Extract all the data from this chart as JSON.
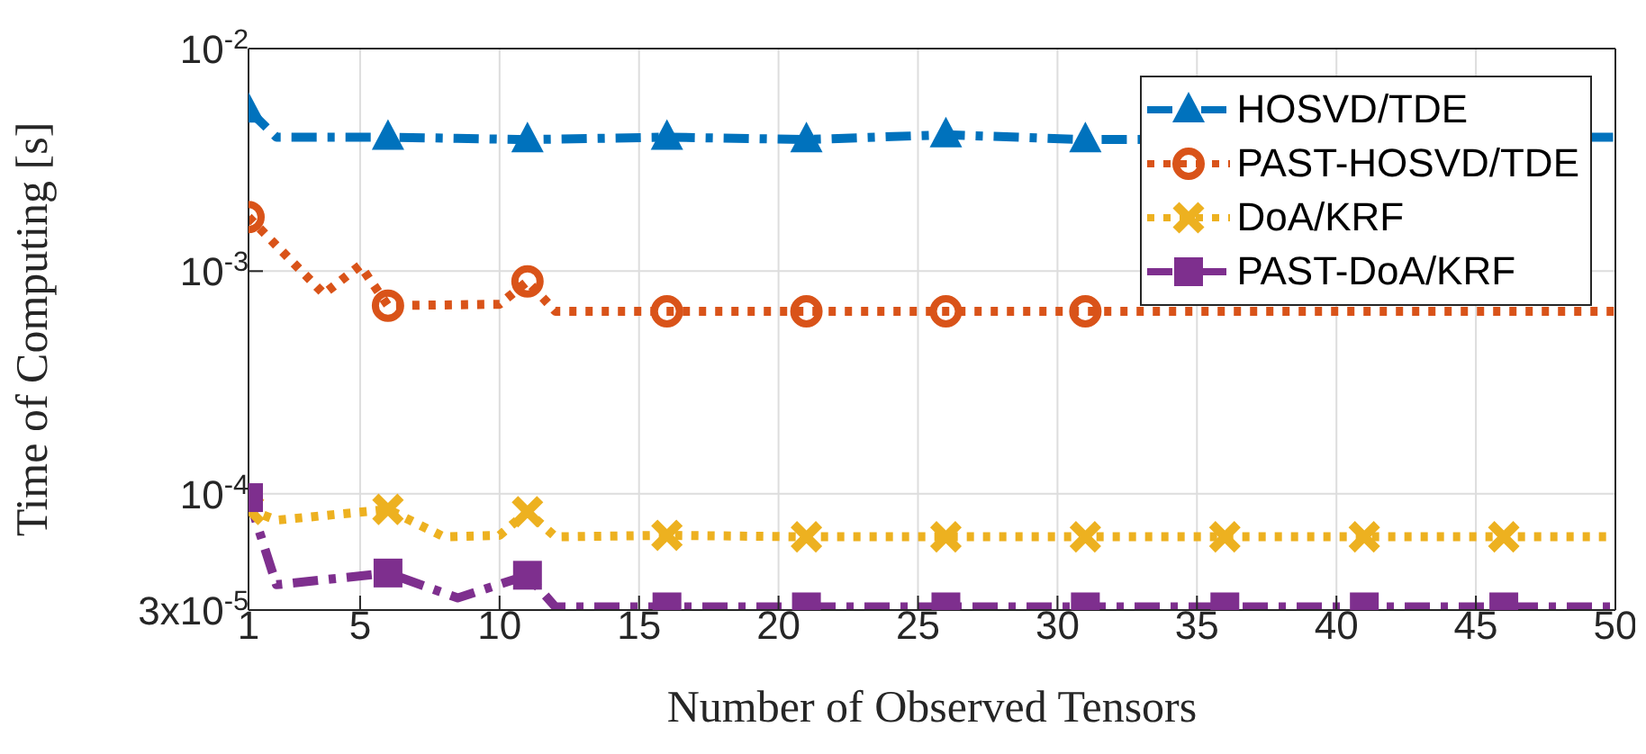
{
  "chart_data": {
    "type": "line",
    "xlabel": "Number of Observed Tensors",
    "ylabel": "Time of Computing [s]",
    "log": "y",
    "xlim": [
      1,
      50
    ],
    "xticks": [
      1,
      5,
      10,
      15,
      20,
      25,
      30,
      35,
      40,
      45,
      50
    ],
    "ylim": [
      3e-05,
      0.01
    ],
    "yticks": [
      {
        "value": 3e-05,
        "label": "3x10$^{-5}$"
      },
      {
        "value": 0.0001,
        "label": "10$^{-4}$"
      },
      {
        "value": 0.001,
        "label": "10$^{-3}$"
      },
      {
        "value": 0.01,
        "label": "10$^{-2}$"
      }
    ],
    "grid": true,
    "legend": "top right",
    "series": [
      {
        "name": "HOSVD/TDE",
        "color": "#0072bd",
        "marker": "triangle",
        "line_style": "dashed",
        "x": [
          1,
          2,
          6,
          11,
          16,
          21,
          26,
          31,
          50
        ],
        "values": [
          0.0053,
          0.004,
          0.004,
          0.0039,
          0.004,
          0.0039,
          0.0041,
          0.0039,
          0.004
        ]
      },
      {
        "name": "PAST-HOSVD/TDE",
        "color": "#d95319",
        "marker": "circle",
        "line_style": "dotted",
        "x": [
          1,
          3.7,
          5,
          6,
          10,
          11,
          12,
          16,
          21,
          26,
          31,
          50
        ],
        "values": [
          0.00175,
          0.00079,
          0.00106,
          0.0007,
          0.00071,
          0.0009,
          0.00066,
          0.00066,
          0.00066,
          0.00066,
          0.00066,
          0.00066
        ]
      },
      {
        "name": "DoA/KRF",
        "color": "#edb120",
        "marker": "cross",
        "line_style": "dotted",
        "x": [
          1,
          2,
          6,
          8,
          10,
          11,
          12,
          16,
          21,
          26,
          31,
          36,
          41,
          46,
          50
        ],
        "values": [
          8.5e-05,
          7.6e-05,
          8.5e-05,
          6.4e-05,
          6.5e-05,
          8.3e-05,
          6.4e-05,
          6.5e-05,
          6.4e-05,
          6.4e-05,
          6.4e-05,
          6.4e-05,
          6.4e-05,
          6.4e-05,
          6.4e-05
        ]
      },
      {
        "name": "PAST-DoA/KRF",
        "color": "#7e2f8e",
        "marker": "square",
        "line_style": "dashed",
        "x": [
          1,
          2,
          6,
          8.5,
          11,
          12,
          16,
          21,
          26,
          31,
          36,
          41,
          46,
          50
        ],
        "values": [
          9.6e-05,
          3.9e-05,
          4.4e-05,
          3.4e-05,
          4.3e-05,
          3.1e-05,
          3.1e-05,
          3.1e-05,
          3.1e-05,
          3.1e-05,
          3.1e-05,
          3.1e-05,
          3.1e-05,
          3.1e-05
        ]
      }
    ]
  }
}
